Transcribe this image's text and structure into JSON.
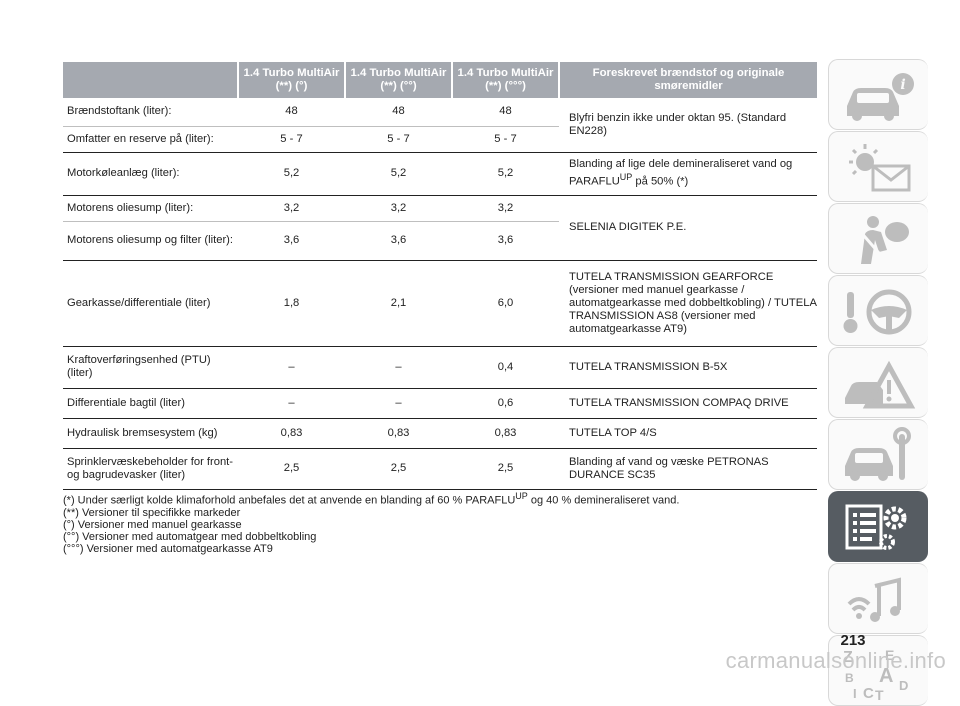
{
  "table": {
    "headers": [
      "",
      "1.4 Turbo MultiAir (**) (°)",
      "1.4 Turbo MultiAir (**) (°°)",
      "1.4 Turbo MultiAir (**) (°°°)",
      "Foreskrevet brændstof og originale smøremidler"
    ],
    "rows": [
      {
        "label": "Brændstoftank (liter):",
        "values": [
          "48",
          "48",
          "48"
        ]
      },
      {
        "label": "Omfatter en reserve på (liter):",
        "values": [
          "5 - 7",
          "5 - 7",
          "5 - 7"
        ]
      },
      {
        "label": "Motorkøleanlæg (liter):",
        "values": [
          "5,2",
          "5,2",
          "5,2"
        ]
      },
      {
        "label": "Motorens oliesump (liter):",
        "values": [
          "3,2",
          "3,2",
          "3,2"
        ]
      },
      {
        "label": "Motorens oliesump og filter (liter):",
        "values": [
          "3,6",
          "3,6",
          "3,6"
        ]
      },
      {
        "label": "Gearkasse/differentiale (liter)",
        "values": [
          "1,8",
          "2,1",
          "6,0"
        ]
      },
      {
        "label": "Kraftoverføringsenhed (PTU) (liter)",
        "values": [
          "–",
          "–",
          "0,4"
        ]
      },
      {
        "label": "Differentiale bagtil (liter)",
        "values": [
          "–",
          "–",
          "0,6"
        ]
      },
      {
        "label": "Hydraulisk bremsesystem (kg)",
        "values": [
          "0,83",
          "0,83",
          "0,83"
        ]
      },
      {
        "label": "Sprinklervæskebeholder for front- og bagrudevasker (liter)",
        "values": [
          "2,5",
          "2,5",
          "2,5"
        ]
      }
    ],
    "lubricants": {
      "fuel": "Blyfri benzin ikke under oktan 95. (Standard EN228)",
      "coolant_before": "Blanding af lige dele demineraliseret vand og PARAFLU",
      "coolant_sup": "UP",
      "coolant_after": " på 50% (*)",
      "engine_oil": "SELENIA DIGITEK P.E.",
      "gearbox": "TUTELA TRANSMISSION GEARFORCE (versioner med manuel gearkasse / automatgearkasse med dobbeltkobling) / TUTELA TRANSMISSION AS8 (versioner med automatgearkasse AT9)",
      "ptu": "TUTELA TRANSMISSION B-5X",
      "rear_diff": "TUTELA TRANSMISSION COMPAQ DRIVE",
      "brake": "TUTELA TOP 4/S",
      "washer": "Blanding af vand og væske PETRONAS DURANCE SC35"
    }
  },
  "footnotes": {
    "note1_before": "(*) Under særligt kolde klimaforhold anbefales det at anvende en blanding af 60 % PARAFLU",
    "note1_sup": "UP",
    "note1_after": "og 40 % demineraliseret vand.",
    "note2": "(**) Versioner til specifikke markeder",
    "note3": "(°) Versioner med manuel gearkasse",
    "note4": "(°°) Versioner med automatgear med dobbeltkobling",
    "note5": "(°°°) Versioner med automatgearkasse AT9"
  },
  "sidebar": {
    "tabs": [
      {
        "icon": "car-info-icon",
        "active": false
      },
      {
        "icon": "warning-lights-message-icon",
        "active": false
      },
      {
        "icon": "airbag-safety-icon",
        "active": false
      },
      {
        "icon": "steering-wheel-key-icon",
        "active": false
      },
      {
        "icon": "breakdown-warning-icon",
        "active": false
      },
      {
        "icon": "car-service-tools-icon",
        "active": false
      },
      {
        "icon": "technical-data-gear-icon",
        "active": true
      },
      {
        "icon": "multimedia-icon",
        "active": false
      },
      {
        "icon": "alphabetical-index-icon",
        "active": false
      }
    ],
    "active_color": "#565c62"
  },
  "page_number": "213",
  "watermark": "carmanualsonline.info"
}
